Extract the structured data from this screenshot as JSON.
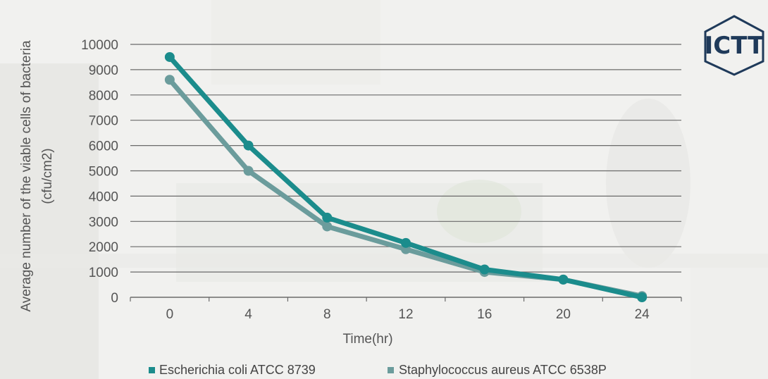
{
  "chart_data": {
    "type": "line",
    "title": "",
    "xlabel": "Time(hr)",
    "ylabel": "Average number of the viable cells of bacteria (cfu/cm2)",
    "ylabel_lines": [
      "Average number of the viable cells of bacteria",
      "(cfu/cm2)"
    ],
    "x": [
      0,
      4,
      8,
      12,
      16,
      20,
      24
    ],
    "ylim": [
      0,
      10000
    ],
    "y_ticks": [
      0,
      1000,
      2000,
      3000,
      4000,
      5000,
      6000,
      7000,
      8000,
      9000,
      10000
    ],
    "grid": true,
    "legend": "bottom",
    "series": [
      {
        "name": "Escherichia coli ATCC 8739",
        "color": "#1b8c8c",
        "values": [
          9500,
          6000,
          3150,
          2150,
          1100,
          700,
          0
        ]
      },
      {
        "name": "Staphylococcus aureus ATCC 6538P",
        "color": "#6b9c9c",
        "values": [
          8600,
          5000,
          2800,
          1900,
          1000,
          700,
          50
        ]
      }
    ]
  },
  "logo": {
    "text": "ICTT",
    "color": "#1f3a5a"
  }
}
